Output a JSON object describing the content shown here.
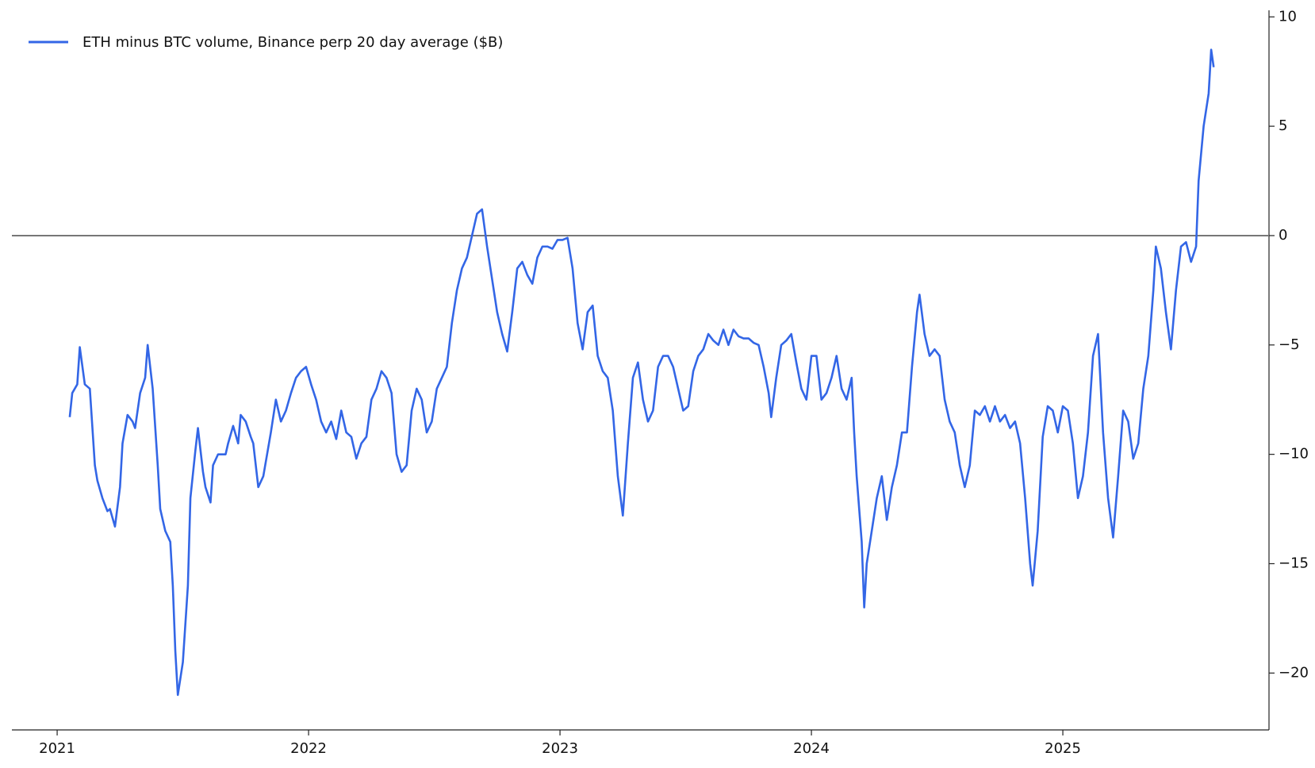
{
  "chart_data": {
    "type": "line",
    "y_axis_side": "right",
    "legend": "upper left",
    "hline": 0,
    "xlim": [
      2020.82,
      2025.82
    ],
    "xticks": [
      2021,
      2022,
      2023,
      2024,
      2025
    ],
    "ylim": [
      -22.6,
      10.3
    ],
    "yticks": [
      {
        "value": -20,
        "label": "−20"
      },
      {
        "value": -15,
        "label": "−15"
      },
      {
        "value": -10,
        "label": "−10"
      },
      {
        "value": -5,
        "label": "−5"
      },
      0,
      5,
      10
    ],
    "series": [
      {
        "name": "ETH minus BTC volume, Binance perp 20 day average ($B)",
        "color": "#3366e6",
        "x": [
          2021.05,
          2021.06,
          2021.08,
          2021.09,
          2021.11,
          2021.13,
          2021.15,
          2021.16,
          2021.18,
          2021.2,
          2021.21,
          2021.23,
          2021.25,
          2021.26,
          2021.28,
          2021.3,
          2021.31,
          2021.33,
          2021.35,
          2021.36,
          2021.38,
          2021.4,
          2021.41,
          2021.43,
          2021.45,
          2021.46,
          2021.47,
          2021.48,
          2021.5,
          2021.52,
          2021.53,
          2021.55,
          2021.56,
          2021.58,
          2021.59,
          2021.61,
          2021.62,
          2021.64,
          2021.67,
          2021.68,
          2021.7,
          2021.72,
          2021.73,
          2021.75,
          2021.77,
          2021.78,
          2021.8,
          2021.82,
          2021.85,
          2021.87,
          2021.89,
          2021.91,
          2021.93,
          2021.95,
          2021.97,
          2021.99,
          2022.01,
          2022.03,
          2022.05,
          2022.07,
          2022.09,
          2022.11,
          2022.13,
          2022.15,
          2022.17,
          2022.19,
          2022.21,
          2022.23,
          2022.25,
          2022.27,
          2022.29,
          2022.31,
          2022.33,
          2022.35,
          2022.37,
          2022.39,
          2022.41,
          2022.43,
          2022.45,
          2022.47,
          2022.49,
          2022.51,
          2022.53,
          2022.55,
          2022.57,
          2022.59,
          2022.61,
          2022.63,
          2022.65,
          2022.67,
          2022.69,
          2022.71,
          2022.73,
          2022.75,
          2022.77,
          2022.79,
          2022.81,
          2022.83,
          2022.85,
          2022.87,
          2022.89,
          2022.91,
          2022.93,
          2022.95,
          2022.97,
          2022.99,
          2023.01,
          2023.03,
          2023.05,
          2023.07,
          2023.09,
          2023.11,
          2023.13,
          2023.15,
          2023.17,
          2023.19,
          2023.21,
          2023.23,
          2023.25,
          2023.27,
          2023.29,
          2023.31,
          2023.33,
          2023.35,
          2023.37,
          2023.39,
          2023.41,
          2023.43,
          2023.45,
          2023.47,
          2023.49,
          2023.51,
          2023.53,
          2023.55,
          2023.57,
          2023.59,
          2023.61,
          2023.63,
          2023.65,
          2023.67,
          2023.69,
          2023.71,
          2023.73,
          2023.75,
          2023.77,
          2023.79,
          2023.81,
          2023.83,
          2023.84,
          2023.86,
          2023.88,
          2023.9,
          2023.92,
          2023.94,
          2023.96,
          2023.98,
          2024.0,
          2024.02,
          2024.04,
          2024.06,
          2024.08,
          2024.1,
          2024.12,
          2024.14,
          2024.16,
          2024.17,
          2024.18,
          2024.2,
          2024.21,
          2024.22,
          2024.24,
          2024.26,
          2024.28,
          2024.3,
          2024.32,
          2024.34,
          2024.36,
          2024.38,
          2024.4,
          2024.42,
          2024.43,
          2024.45,
          2024.47,
          2024.49,
          2024.51,
          2024.53,
          2024.55,
          2024.57,
          2024.59,
          2024.61,
          2024.63,
          2024.65,
          2024.67,
          2024.69,
          2024.71,
          2024.73,
          2024.75,
          2024.77,
          2024.79,
          2024.81,
          2024.83,
          2024.85,
          2024.87,
          2024.88,
          2024.9,
          2024.92,
          2024.94,
          2024.96,
          2024.98,
          2025.0,
          2025.02,
          2025.04,
          2025.06,
          2025.08,
          2025.1,
          2025.12,
          2025.14,
          2025.16,
          2025.18,
          2025.2,
          2025.22,
          2025.24,
          2025.26,
          2025.28,
          2025.3,
          2025.32,
          2025.34,
          2025.36,
          2025.37,
          2025.39,
          2025.41,
          2025.43,
          2025.45,
          2025.47,
          2025.49,
          2025.51,
          2025.53,
          2025.54,
          2025.56,
          2025.58,
          2025.59,
          2025.6
        ],
        "values": [
          -8.3,
          -7.2,
          -6.8,
          -5.1,
          -6.8,
          -7.0,
          -10.5,
          -11.2,
          -12.0,
          -12.6,
          -12.5,
          -13.3,
          -11.5,
          -9.5,
          -8.2,
          -8.5,
          -8.8,
          -7.2,
          -6.5,
          -5.0,
          -7.0,
          -10.5,
          -12.5,
          -13.5,
          -14.0,
          -16.0,
          -19.0,
          -21.0,
          -19.5,
          -16.0,
          -12.0,
          -9.8,
          -8.8,
          -10.8,
          -11.5,
          -12.2,
          -10.5,
          -10.0,
          -10.0,
          -9.5,
          -8.7,
          -9.5,
          -8.2,
          -8.5,
          -9.2,
          -9.5,
          -11.5,
          -11.0,
          -9.0,
          -7.5,
          -8.5,
          -8.0,
          -7.2,
          -6.5,
          -6.2,
          -6.0,
          -6.8,
          -7.5,
          -8.5,
          -9.0,
          -8.5,
          -9.3,
          -8.0,
          -9.0,
          -9.2,
          -10.2,
          -9.5,
          -9.2,
          -7.5,
          -7.0,
          -6.2,
          -6.5,
          -7.2,
          -10.0,
          -10.8,
          -10.5,
          -8.0,
          -7.0,
          -7.5,
          -9.0,
          -8.5,
          -7.0,
          -6.5,
          -6.0,
          -4.0,
          -2.5,
          -1.5,
          -1.0,
          0.0,
          1.0,
          1.2,
          -0.5,
          -2.0,
          -3.5,
          -4.5,
          -5.3,
          -3.5,
          -1.5,
          -1.2,
          -1.8,
          -2.2,
          -1.0,
          -0.5,
          -0.5,
          -0.6,
          -0.2,
          -0.2,
          -0.1,
          -1.5,
          -4.0,
          -5.2,
          -3.5,
          -3.2,
          -5.5,
          -6.2,
          -6.5,
          -8.0,
          -11.0,
          -12.8,
          -9.5,
          -6.5,
          -5.8,
          -7.5,
          -8.5,
          -8.0,
          -6.0,
          -5.5,
          -5.5,
          -6.0,
          -7.0,
          -8.0,
          -7.8,
          -6.2,
          -5.5,
          -5.2,
          -4.5,
          -4.8,
          -5.0,
          -4.3,
          -5.0,
          -4.3,
          -4.6,
          -4.7,
          -4.7,
          -4.9,
          -5.0,
          -6.0,
          -7.2,
          -8.3,
          -6.5,
          -5.0,
          -4.8,
          -4.5,
          -5.8,
          -7.0,
          -7.5,
          -5.5,
          -5.5,
          -7.5,
          -7.2,
          -6.5,
          -5.5,
          -7.0,
          -7.5,
          -6.5,
          -9.0,
          -11.0,
          -14.0,
          -17.0,
          -15.0,
          -13.5,
          -12.0,
          -11.0,
          -13.0,
          -11.5,
          -10.5,
          -9.0,
          -9.0,
          -6.0,
          -3.5,
          -2.7,
          -4.5,
          -5.5,
          -5.2,
          -5.5,
          -7.5,
          -8.5,
          -9.0,
          -10.5,
          -11.5,
          -10.5,
          -8.0,
          -8.2,
          -7.8,
          -8.5,
          -7.8,
          -8.5,
          -8.2,
          -8.8,
          -8.5,
          -9.5,
          -12.0,
          -15.0,
          -16.0,
          -13.5,
          -9.2,
          -7.8,
          -8.0,
          -9.0,
          -7.8,
          -8.0,
          -9.5,
          -12.0,
          -11.0,
          -9.0,
          -5.5,
          -4.5,
          -9.0,
          -12.0,
          -13.8,
          -11.0,
          -8.0,
          -8.5,
          -10.2,
          -9.5,
          -7.0,
          -5.5,
          -2.5,
          -0.5,
          -1.5,
          -3.5,
          -5.2,
          -2.5,
          -0.5,
          -0.3,
          -1.2,
          -0.5,
          2.5,
          5.0,
          6.5,
          8.5,
          7.7
        ]
      }
    ]
  }
}
